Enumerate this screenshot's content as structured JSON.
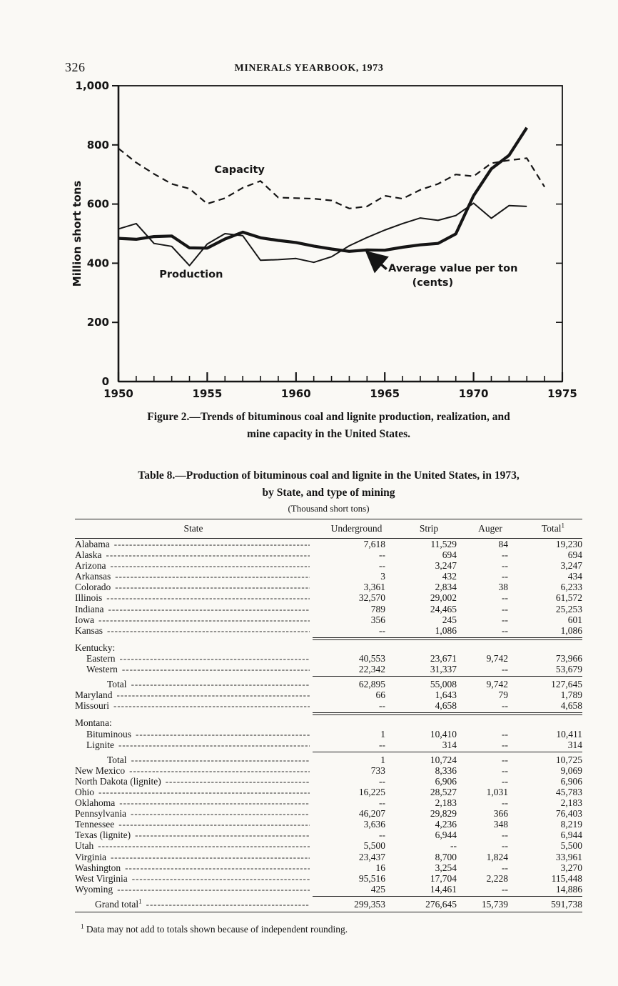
{
  "page": {
    "number": "326",
    "running_head": "MINERALS YEARBOOK, 1973"
  },
  "figure": {
    "caption_lines": [
      "Figure 2.—Trends of bituminous coal and lignite production, realization, and",
      "mine capacity in the United States."
    ]
  },
  "chart_data": {
    "type": "line",
    "title": "",
    "xlabel": "",
    "ylabel": "Million short tons",
    "ylim": [
      0,
      1000
    ],
    "xlim": [
      1950,
      1975
    ],
    "grid": false,
    "legend_position": "inline-labels",
    "yticks": [
      0,
      200,
      400,
      600,
      800,
      1000
    ],
    "ytick_labels": [
      "0",
      "200",
      "400",
      "600",
      "800",
      "1,000"
    ],
    "xticks": [
      1950,
      1955,
      1960,
      1965,
      1970,
      1975
    ],
    "series": [
      {
        "id": "capacity",
        "name": "Capacity",
        "style": "dashed",
        "width": 2.2,
        "dash": "9 6",
        "points": [
          [
            1950,
            788
          ],
          [
            1951,
            740
          ],
          [
            1952,
            702
          ],
          [
            1953,
            668
          ],
          [
            1954,
            652
          ],
          [
            1955,
            601
          ],
          [
            1956,
            620
          ],
          [
            1957,
            655
          ],
          [
            1958,
            678
          ],
          [
            1959,
            622
          ],
          [
            1960,
            620
          ],
          [
            1961,
            618
          ],
          [
            1962,
            612
          ],
          [
            1963,
            585
          ],
          [
            1964,
            592
          ],
          [
            1965,
            628
          ],
          [
            1966,
            618
          ],
          [
            1967,
            648
          ],
          [
            1968,
            668
          ],
          [
            1969,
            700
          ],
          [
            1970,
            694
          ],
          [
            1971,
            738
          ],
          [
            1972,
            748
          ],
          [
            1973,
            755
          ],
          [
            1974,
            658
          ]
        ]
      },
      {
        "id": "production",
        "name": "Production",
        "style": "solid",
        "width": 2,
        "dash": "",
        "points": [
          [
            1950,
            516
          ],
          [
            1951,
            534
          ],
          [
            1952,
            467
          ],
          [
            1953,
            457
          ],
          [
            1954,
            392
          ],
          [
            1955,
            465
          ],
          [
            1956,
            500
          ],
          [
            1957,
            493
          ],
          [
            1958,
            410
          ],
          [
            1959,
            412
          ],
          [
            1960,
            416
          ],
          [
            1961,
            403
          ],
          [
            1962,
            422
          ],
          [
            1963,
            459
          ],
          [
            1964,
            487
          ],
          [
            1965,
            512
          ],
          [
            1966,
            534
          ],
          [
            1967,
            553
          ],
          [
            1968,
            545
          ],
          [
            1969,
            561
          ],
          [
            1970,
            603
          ],
          [
            1971,
            552
          ],
          [
            1972,
            595
          ],
          [
            1973,
            592
          ]
        ]
      },
      {
        "id": "average-value",
        "name": "Average value per ton (cents)",
        "style": "solid-thick",
        "width": 4.2,
        "dash": "",
        "points": [
          [
            1950,
            484
          ],
          [
            1951,
            481
          ],
          [
            1952,
            490
          ],
          [
            1953,
            492
          ],
          [
            1954,
            452
          ],
          [
            1955,
            451
          ],
          [
            1956,
            482
          ],
          [
            1957,
            505
          ],
          [
            1958,
            486
          ],
          [
            1959,
            477
          ],
          [
            1960,
            470
          ],
          [
            1961,
            458
          ],
          [
            1962,
            448
          ],
          [
            1963,
            440
          ],
          [
            1964,
            445
          ],
          [
            1965,
            444
          ],
          [
            1966,
            454
          ],
          [
            1967,
            462
          ],
          [
            1968,
            467
          ],
          [
            1969,
            499
          ],
          [
            1970,
            628
          ],
          [
            1971,
            719
          ],
          [
            1972,
            765
          ],
          [
            1973,
            858
          ]
        ]
      }
    ],
    "labels": [
      {
        "text": "Capacity",
        "x": 1955.4,
        "y": 705,
        "anchor": "start"
      },
      {
        "text": "Production",
        "x": 1952.3,
        "y": 352,
        "anchor": "start"
      },
      {
        "text": "Average value per ton",
        "x": 1965.2,
        "y": 372,
        "anchor": "start"
      },
      {
        "text": "(cents)",
        "x": 1967.7,
        "y": 324,
        "anchor": "middle"
      }
    ],
    "arrow": {
      "from": [
        1965.1,
        380
      ],
      "to": [
        1964.0,
        437
      ]
    }
  },
  "table": {
    "title_lines": [
      "Table 8.—Production of bituminous coal and lignite in the United States, in 1973,",
      "by State, and type of mining"
    ],
    "subtitle": "(Thousand short tons)",
    "columns": [
      {
        "label": "State"
      },
      {
        "label": "Underground"
      },
      {
        "label": "Strip"
      },
      {
        "label": "Auger"
      },
      {
        "label": "Total",
        "sup": "1"
      }
    ],
    "rows": [
      {
        "type": "data",
        "name": "Alabama",
        "values": [
          "7,618",
          "11,529",
          "84",
          "19,230"
        ]
      },
      {
        "type": "data",
        "name": "Alaska",
        "values": [
          "--",
          "694",
          "--",
          "694"
        ]
      },
      {
        "type": "data",
        "name": "Arizona",
        "values": [
          "--",
          "3,247",
          "--",
          "3,247"
        ]
      },
      {
        "type": "data",
        "name": "Arkansas",
        "values": [
          "3",
          "432",
          "--",
          "434"
        ]
      },
      {
        "type": "data",
        "name": "Colorado",
        "values": [
          "3,361",
          "2,834",
          "38",
          "6,233"
        ]
      },
      {
        "type": "data",
        "name": "Illinois",
        "values": [
          "32,570",
          "29,002",
          "--",
          "61,572"
        ]
      },
      {
        "type": "data",
        "name": "Indiana",
        "values": [
          "789",
          "24,465",
          "--",
          "25,253"
        ]
      },
      {
        "type": "data",
        "name": "Iowa",
        "values": [
          "356",
          "245",
          "--",
          "601"
        ]
      },
      {
        "type": "data",
        "name": "Kansas",
        "values": [
          "--",
          "1,086",
          "--",
          "1,086"
        ]
      },
      {
        "type": "rule",
        "style": "double"
      },
      {
        "type": "group",
        "name": "Kentucky:"
      },
      {
        "type": "sub",
        "name": "Eastern",
        "values": [
          "40,553",
          "23,671",
          "9,742",
          "73,966"
        ]
      },
      {
        "type": "sub",
        "name": "Western",
        "values": [
          "22,342",
          "31,337",
          "--",
          "53,679"
        ]
      },
      {
        "type": "rule",
        "style": "single"
      },
      {
        "type": "total",
        "name": "Total",
        "values": [
          "62,895",
          "55,008",
          "9,742",
          "127,645"
        ]
      },
      {
        "type": "data",
        "name": "Maryland",
        "values": [
          "66",
          "1,643",
          "79",
          "1,789"
        ]
      },
      {
        "type": "data",
        "name": "Missouri",
        "values": [
          "--",
          "4,658",
          "--",
          "4,658"
        ]
      },
      {
        "type": "rule",
        "style": "double"
      },
      {
        "type": "group",
        "name": "Montana:"
      },
      {
        "type": "sub",
        "name": "Bituminous",
        "values": [
          "1",
          "10,410",
          "--",
          "10,411"
        ]
      },
      {
        "type": "sub",
        "name": "Lignite",
        "values": [
          "--",
          "314",
          "--",
          "314"
        ]
      },
      {
        "type": "rule",
        "style": "single"
      },
      {
        "type": "total",
        "name": "Total",
        "values": [
          "1",
          "10,724",
          "--",
          "10,725"
        ]
      },
      {
        "type": "data",
        "name": "New Mexico",
        "values": [
          "733",
          "8,336",
          "--",
          "9,069"
        ]
      },
      {
        "type": "data",
        "name": "North Dakota (lignite)",
        "values": [
          "--",
          "6,906",
          "--",
          "6,906"
        ]
      },
      {
        "type": "data",
        "name": "Ohio",
        "values": [
          "16,225",
          "28,527",
          "1,031",
          "45,783"
        ]
      },
      {
        "type": "data",
        "name": "Oklahoma",
        "values": [
          "--",
          "2,183",
          "--",
          "2,183"
        ]
      },
      {
        "type": "data",
        "name": "Pennsylvania",
        "values": [
          "46,207",
          "29,829",
          "366",
          "76,403"
        ]
      },
      {
        "type": "data",
        "name": "Tennessee",
        "values": [
          "3,636",
          "4,236",
          "348",
          "8,219"
        ]
      },
      {
        "type": "data",
        "name": "Texas (lignite)",
        "values": [
          "--",
          "6,944",
          "--",
          "6,944"
        ]
      },
      {
        "type": "data",
        "name": "Utah",
        "values": [
          "5,500",
          "--",
          "--",
          "5,500"
        ]
      },
      {
        "type": "data",
        "name": "Virginia",
        "values": [
          "23,437",
          "8,700",
          "1,824",
          "33,961"
        ]
      },
      {
        "type": "data",
        "name": "Washington",
        "values": [
          "16",
          "3,254",
          "--",
          "3,270"
        ]
      },
      {
        "type": "data",
        "name": "West Virginia",
        "values": [
          "95,516",
          "17,704",
          "2,228",
          "115,448"
        ]
      },
      {
        "type": "data",
        "name": "Wyoming",
        "values": [
          "425",
          "14,461",
          "--",
          "14,886"
        ]
      },
      {
        "type": "rule",
        "style": "single"
      },
      {
        "type": "grand",
        "name": "Grand total",
        "sup": "1",
        "values": [
          "299,353",
          "276,645",
          "15,739",
          "591,738"
        ]
      }
    ]
  },
  "footnote": {
    "sup": "1",
    "text": "Data may not add to totals shown because of independent rounding."
  }
}
